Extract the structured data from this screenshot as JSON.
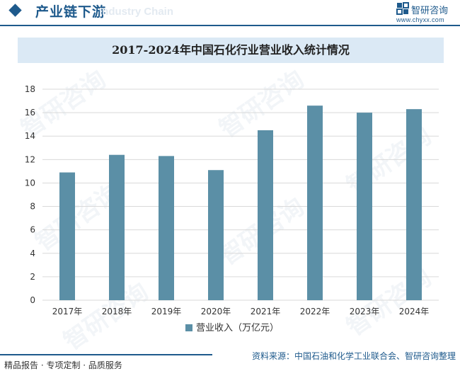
{
  "header": {
    "section_title": "产业链下游",
    "section_subtitle": "Industry Chain",
    "brand_name": "智研咨询",
    "brand_url": "www.chyxx.com"
  },
  "chart_data": {
    "type": "bar",
    "title": "2017-2024年中国石化行业营业收入统计情况",
    "categories": [
      "2017年",
      "2018年",
      "2019年",
      "2020年",
      "2021年",
      "2022年",
      "2023年",
      "2024年"
    ],
    "series": [
      {
        "name": "营业收入（万亿元）",
        "values": [
          10.9,
          12.4,
          12.3,
          11.1,
          14.5,
          16.6,
          16.0,
          16.3
        ]
      }
    ],
    "ylim": [
      0,
      18
    ],
    "yticks": [
      0,
      2,
      4,
      6,
      8,
      10,
      12,
      14,
      16,
      18
    ],
    "grid": true,
    "legend_position": "bottom",
    "color": "#5b8fa6"
  },
  "footer": {
    "left": "精品报告 · 专项定制 · 品质服务",
    "source": "资料来源：中国石油和化学工业联合会、智研咨询整理"
  },
  "watermark": "智研咨询"
}
